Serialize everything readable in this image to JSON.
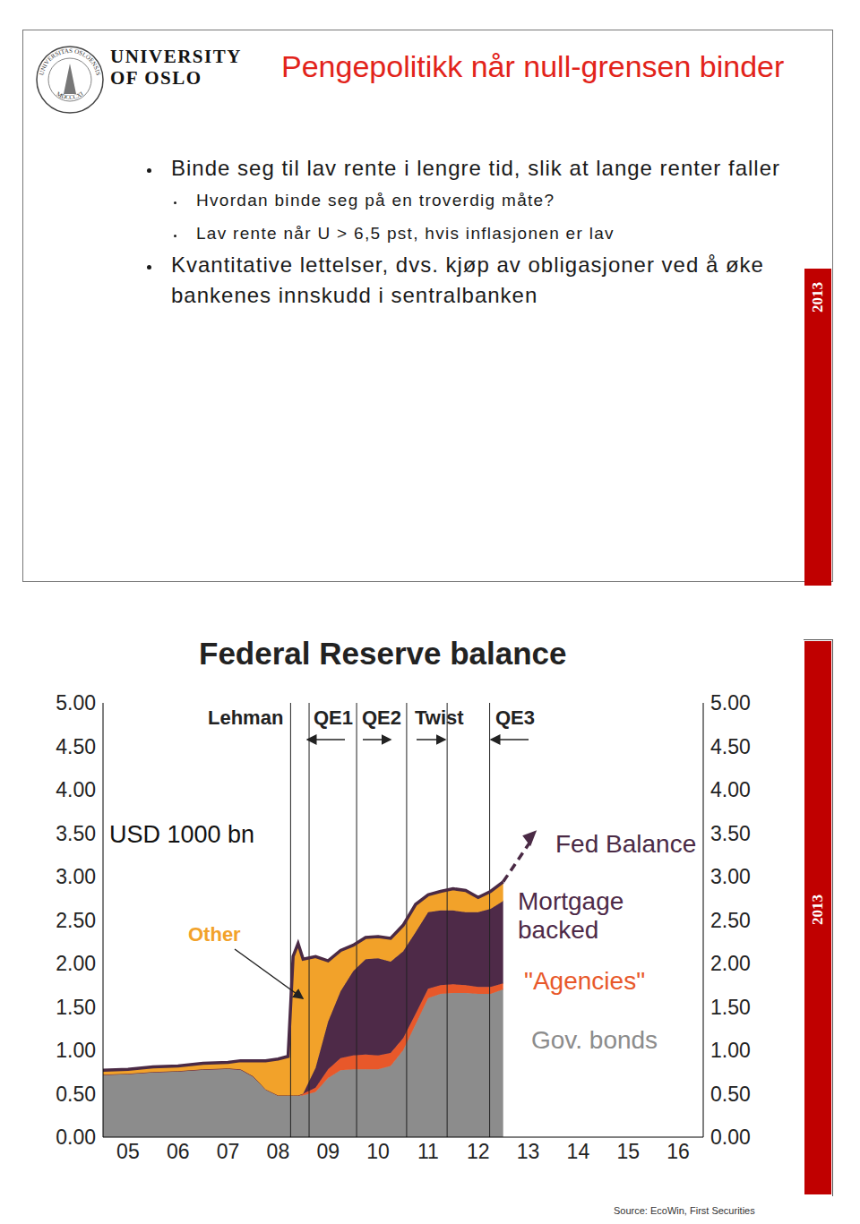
{
  "slide": {
    "seal": [
      "UNIVERSITAS OSLOENSIS",
      "MDCCCXI"
    ],
    "logo": [
      "UNIVERSITY",
      "OF OSLO"
    ],
    "title": "Pengepolitikk når null-grensen binder",
    "bullets": [
      {
        "text": "Binde seg til lav rente i lengre tid, slik at lange renter faller",
        "sub": [
          "Hvordan binde seg på en troverdig måte?",
          "Lav rente når U > 6,5 pst, hvis inflasjonen er lav"
        ]
      },
      {
        "text": "Kvantitative lettelser, dvs. kjøp av obligasjoner ved å øke bankenes innskudd i sentralbanken",
        "sub": []
      }
    ]
  },
  "side_label": "2013",
  "chart_data": {
    "type": "area",
    "title": "Federal Reserve balance",
    "unit_label": "USD 1000 bn",
    "source": "Source: EcoWin, First Securities",
    "stacked": true,
    "grid": false,
    "annotations": [
      "Lehman",
      "QE1",
      "QE2",
      "Twist",
      "QE3"
    ],
    "event_lines": [
      2008.75,
      2009.12,
      2010.07,
      2011.07,
      2011.88,
      2012.73
    ],
    "x": [
      2005.0,
      2005.5,
      2006.0,
      2006.5,
      2007.0,
      2007.5,
      2007.75,
      2008.0,
      2008.25,
      2008.5,
      2008.7,
      2008.8,
      2008.9,
      2009.0,
      2009.25,
      2009.5,
      2009.75,
      2010.0,
      2010.25,
      2010.5,
      2010.75,
      2011.0,
      2011.25,
      2011.5,
      2011.75,
      2012.0,
      2012.25,
      2012.5,
      2012.75,
      2013.0
    ],
    "xlim": [
      2005,
      2017
    ],
    "xticks": [
      {
        "value": 2005.5,
        "label": "05"
      },
      {
        "value": 2006.5,
        "label": "06"
      },
      {
        "value": 2007.5,
        "label": "07"
      },
      {
        "value": 2008.5,
        "label": "08"
      },
      {
        "value": 2009.5,
        "label": "09"
      },
      {
        "value": 2010.5,
        "label": "10"
      },
      {
        "value": 2011.5,
        "label": "11"
      },
      {
        "value": 2012.5,
        "label": "12"
      },
      {
        "value": 2013.5,
        "label": "13"
      },
      {
        "value": 2014.5,
        "label": "14"
      },
      {
        "value": 2015.5,
        "label": "15"
      },
      {
        "value": 2016.5,
        "label": "16"
      }
    ],
    "ylim": [
      0,
      5
    ],
    "yticks": [
      {
        "value": 0,
        "label": "0.00"
      },
      {
        "value": 0.5,
        "label": "0.50"
      },
      {
        "value": 1,
        "label": "1.00"
      },
      {
        "value": 1.5,
        "label": "1.50"
      },
      {
        "value": 2,
        "label": "2.00"
      },
      {
        "value": 2.5,
        "label": "2.50"
      },
      {
        "value": 3,
        "label": "3.00"
      },
      {
        "value": 3.5,
        "label": "3.50"
      },
      {
        "value": 4,
        "label": "4.00"
      },
      {
        "value": 4.5,
        "label": "4.50"
      },
      {
        "value": 5,
        "label": "5.00"
      }
    ],
    "y2lim": [
      0,
      5
    ],
    "y2ticks": [
      {
        "value": 0,
        "label": "0.00"
      },
      {
        "value": 0.5,
        "label": "0.50"
      },
      {
        "value": 1,
        "label": "1.00"
      },
      {
        "value": 1.5,
        "label": "1.50"
      },
      {
        "value": 2,
        "label": "2.00"
      },
      {
        "value": 2.5,
        "label": "2.50"
      },
      {
        "value": 3,
        "label": "3.00"
      },
      {
        "value": 3.5,
        "label": "3.50"
      },
      {
        "value": 4,
        "label": "4.00"
      },
      {
        "value": 4.5,
        "label": "4.50"
      },
      {
        "value": 5,
        "label": "5.00"
      }
    ],
    "series": [
      {
        "name": "Gov. bonds",
        "type": "area",
        "color": "#8c8c8c",
        "values": [
          0.72,
          0.73,
          0.75,
          0.76,
          0.78,
          0.79,
          0.78,
          0.7,
          0.55,
          0.48,
          0.48,
          0.48,
          0.48,
          0.48,
          0.52,
          0.68,
          0.77,
          0.78,
          0.78,
          0.78,
          0.82,
          1.0,
          1.3,
          1.6,
          1.65,
          1.66,
          1.66,
          1.65,
          1.65,
          1.7
        ]
      },
      {
        "name": "\"Agencies\"",
        "type": "area",
        "color": "#e8582a",
        "values": [
          0,
          0,
          0,
          0,
          0,
          0,
          0,
          0,
          0,
          0,
          0,
          0,
          0,
          0.02,
          0.05,
          0.1,
          0.14,
          0.16,
          0.17,
          0.16,
          0.15,
          0.14,
          0.12,
          0.11,
          0.1,
          0.1,
          0.09,
          0.08,
          0.08,
          0.07
        ]
      },
      {
        "name": "Mortgage backed",
        "type": "area",
        "color": "#4e2a48",
        "values": [
          0,
          0,
          0,
          0,
          0,
          0,
          0,
          0,
          0,
          0,
          0,
          0,
          0,
          0,
          0.23,
          0.55,
          0.77,
          0.97,
          1.1,
          1.12,
          1.05,
          1.0,
          0.94,
          0.88,
          0.86,
          0.85,
          0.84,
          0.86,
          0.9,
          0.95
        ]
      },
      {
        "name": "Other",
        "type": "area",
        "color": "#f2a22a",
        "values": [
          0.05,
          0.05,
          0.06,
          0.06,
          0.07,
          0.07,
          0.1,
          0.18,
          0.33,
          0.42,
          0.45,
          1.6,
          1.75,
          1.55,
          1.28,
          0.7,
          0.47,
          0.3,
          0.25,
          0.25,
          0.27,
          0.3,
          0.32,
          0.2,
          0.22,
          0.25,
          0.25,
          0.17,
          0.2,
          0.22
        ]
      },
      {
        "name": "Fed Balance",
        "type": "line",
        "color": "#4a2a45",
        "values": [
          0.77,
          0.78,
          0.81,
          0.82,
          0.85,
          0.86,
          0.88,
          0.88,
          0.88,
          0.9,
          0.93,
          2.08,
          2.23,
          2.05,
          2.08,
          2.03,
          2.15,
          2.21,
          2.3,
          2.31,
          2.29,
          2.44,
          2.68,
          2.79,
          2.83,
          2.86,
          2.84,
          2.76,
          2.83,
          2.94
        ],
        "projection": {
          "x": [
            2013.0,
            2013.6
          ],
          "values": [
            2.94,
            3.45
          ],
          "line_style": "dashed",
          "marker": "arrow"
        }
      }
    ]
  }
}
